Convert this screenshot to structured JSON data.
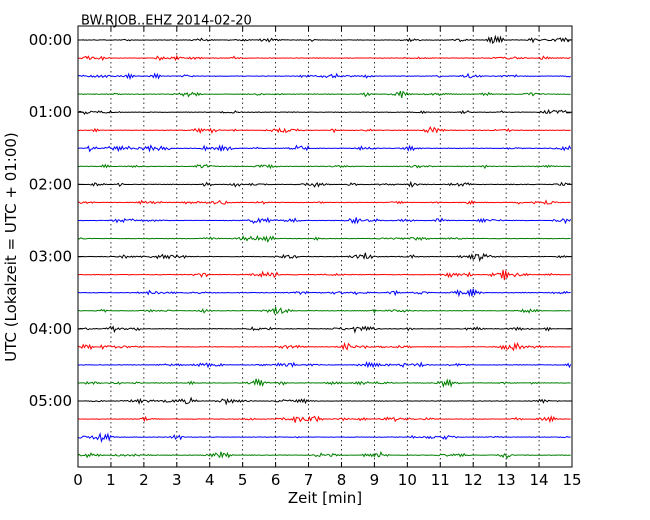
{
  "chart_data": {
    "type": "line",
    "title": "BW.RJOB..EHZ 2014-02-20",
    "xlabel": "Zeit  [min]",
    "ylabel": "UTC (Lokalzeit = UTC + 01:00)",
    "xlim": [
      0,
      15
    ],
    "xticks": [
      0,
      1,
      2,
      3,
      4,
      5,
      6,
      7,
      8,
      9,
      10,
      11,
      12,
      13,
      14,
      15
    ],
    "xtick_labels": [
      "0",
      "1",
      "2",
      "3",
      "4",
      "5",
      "6",
      "7",
      "8",
      "9",
      "10",
      "11",
      "12",
      "13",
      "14",
      "15"
    ],
    "yticks": [
      {
        "row": 0,
        "label": "00:00"
      },
      {
        "row": 4,
        "label": "01:00"
      },
      {
        "row": 8,
        "label": "02:00"
      },
      {
        "row": 12,
        "label": "03:00"
      },
      {
        "row": 16,
        "label": "04:00"
      },
      {
        "row": 20,
        "label": "05:00"
      }
    ],
    "rows": 24,
    "row_minutes": 15,
    "trace_colors": [
      "#000000",
      "#ff0000",
      "#0000ff",
      "#008000"
    ],
    "grid": "vertical-dotted"
  }
}
